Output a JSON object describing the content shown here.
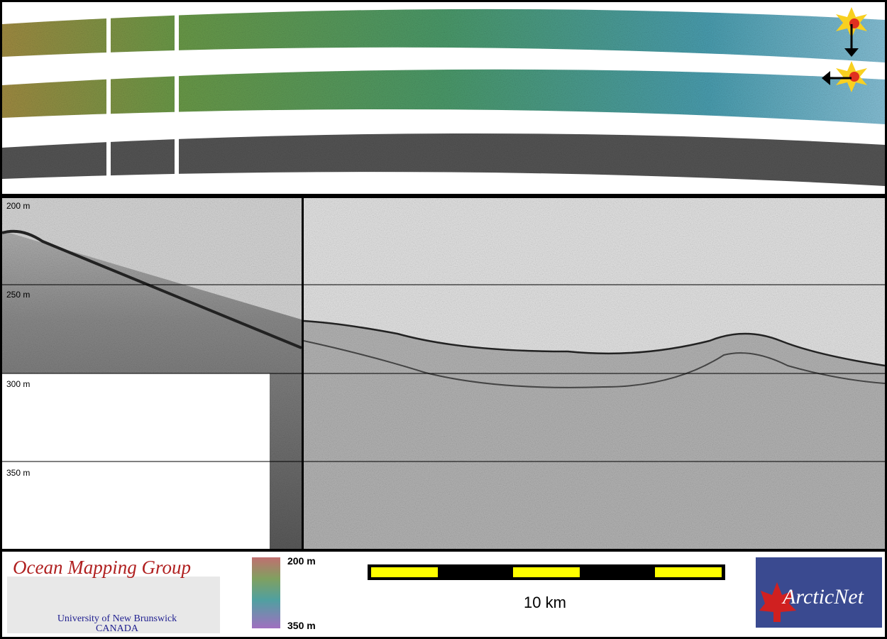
{
  "depth_labels": [
    "200 m",
    "250 m",
    "300 m",
    "350 m"
  ],
  "colorbar": {
    "top": "200 m",
    "bottom": "350 m"
  },
  "scale_bar": {
    "label": "10 km"
  },
  "logos": {
    "omg": {
      "title": "Ocean Mapping Group",
      "subtitle": "University of New Brunswick",
      "country": "CANADA"
    },
    "arcticnet": "ArcticNet"
  }
}
